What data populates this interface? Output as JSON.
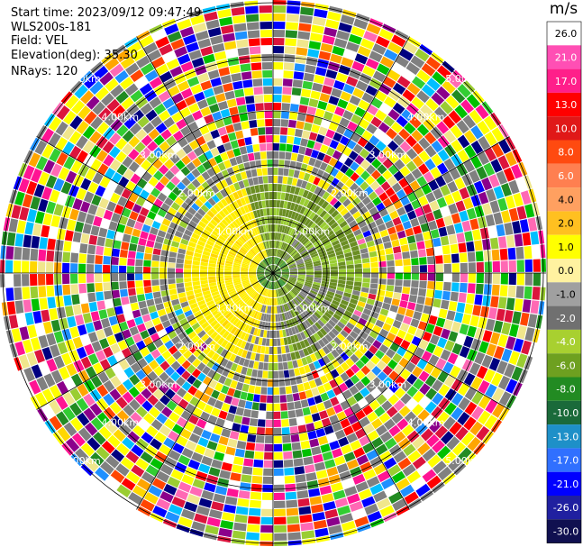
{
  "header": {
    "start_time": "Start time: 2023/09/12 09:47:49",
    "instrument": "WLS200s-181",
    "field": "Field: VEL",
    "elevation": "Elevation(deg): 35.30",
    "nrays": "NRays: 120"
  },
  "colorbar": {
    "unit": "m/s",
    "labels": [
      "26.0",
      "21.0",
      "17.0",
      "13.0",
      "10.0",
      "8.0",
      "6.0",
      "4.0",
      "2.0",
      "1.0",
      "0.0",
      "-1.0",
      "-2.0",
      "-4.0",
      "-6.0",
      "-8.0",
      "-10.0",
      "-13.0",
      "-17.0",
      "-21.0",
      "-26.0",
      "-30.0"
    ],
    "colors": [
      "#ffffff",
      "#ff4fb4",
      "#ff1f8a",
      "#ff0000",
      "#e01818",
      "#ff4a10",
      "#ff7f50",
      "#ffa060",
      "#ffc020",
      "#ffff00",
      "#fff2a0",
      "#a0a0a0",
      "#707070",
      "#a8d030",
      "#6ea020",
      "#228b22",
      "#1a6a3a",
      "#1e90c8",
      "#3070ff",
      "#0000ff",
      "#2020a0",
      "#101050"
    ]
  },
  "chart_data": {
    "type": "heatmap",
    "projection": "polar PPI",
    "field": "VEL",
    "units": "m/s",
    "nrays": 120,
    "range_rings_km": [
      1.0,
      2.0,
      3.0,
      4.0,
      5.0
    ],
    "ring_labels": [
      "1.00km",
      "2.00km",
      "3.00km",
      "4.00km",
      "5.00km"
    ],
    "color_scale_min": -30.0,
    "color_scale_max": 26.0,
    "pattern": "low velocities (-2 to 2 m/s, yellow/green/gray) within ~1.6 km; noisy multi-colored returns beyond ~2 km",
    "grid": true
  }
}
